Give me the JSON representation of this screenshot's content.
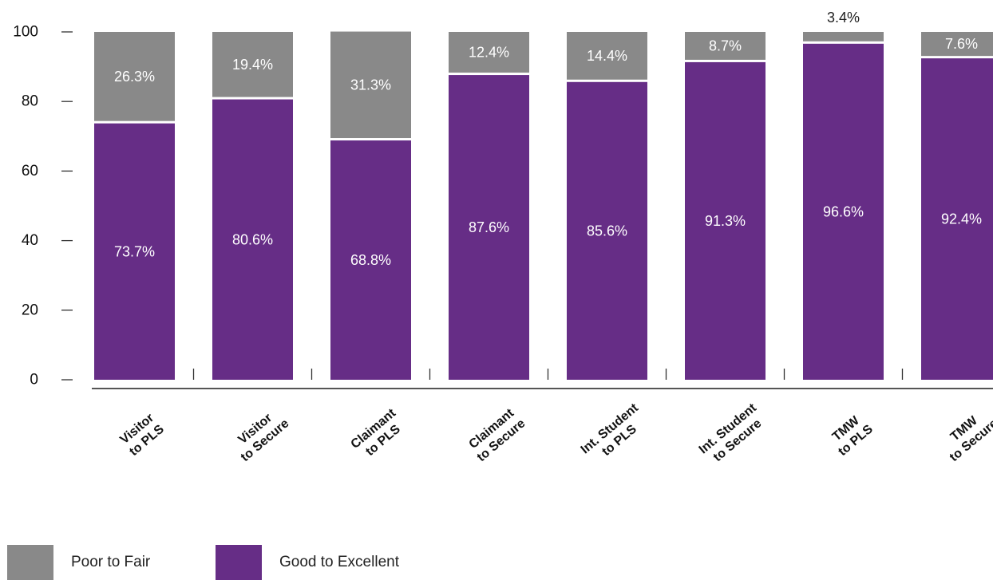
{
  "chart_data": {
    "type": "bar",
    "stacked": true,
    "categories": [
      [
        "Visitor",
        "to PLS"
      ],
      [
        "Visitor",
        "to Secure"
      ],
      [
        "Claimant",
        "to PLS"
      ],
      [
        "Claimant",
        "to Secure"
      ],
      [
        "Int. Student",
        "to PLS"
      ],
      [
        "Int. Student",
        "to Secure"
      ],
      [
        "TMW",
        "to PLS"
      ],
      [
        "TMW",
        "to Secure"
      ]
    ],
    "series": [
      {
        "name": "Good to Excellent",
        "values": [
          73.7,
          80.6,
          68.8,
          87.6,
          85.6,
          91.3,
          96.6,
          92.4
        ],
        "labels": [
          "73.7%",
          "80.6%",
          "68.8%",
          "87.6%",
          "85.6%",
          "91.3%",
          "96.6%",
          "92.4%"
        ],
        "color": "#662d86"
      },
      {
        "name": "Poor to Fair",
        "values": [
          26.3,
          19.4,
          31.3,
          12.4,
          14.4,
          8.7,
          3.4,
          7.6
        ],
        "labels": [
          "26.3%",
          "19.4%",
          "31.3%",
          "12.4%",
          "14.4%",
          "8.7%",
          "3.4%",
          "7.6%"
        ],
        "color": "#898989"
      }
    ],
    "title": "",
    "xlabel": "",
    "ylabel": "",
    "ylim": [
      0,
      100
    ],
    "yticks": [
      0,
      20,
      40,
      60,
      80,
      100
    ],
    "grid": false,
    "legend_position": "bottom-left"
  },
  "legend": [
    {
      "label": "Poor to Fair",
      "color": "#898989"
    },
    {
      "label": "Good to Excellent",
      "color": "#662d86"
    }
  ]
}
